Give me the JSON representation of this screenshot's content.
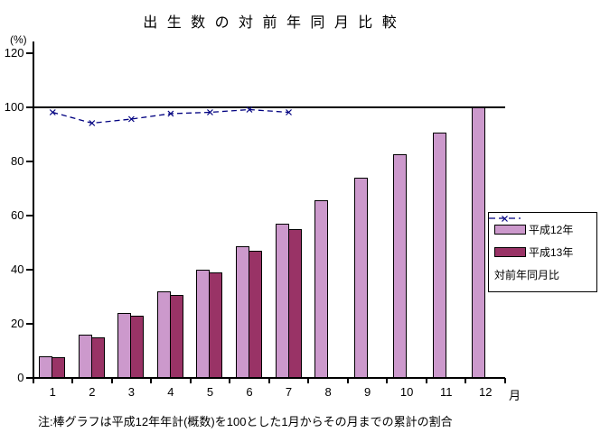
{
  "title": "出 生 数 の 対 前 年 同 月 比 較",
  "y_axis": {
    "unit": "(%)",
    "ticks": [
      0,
      20,
      40,
      60,
      80,
      100,
      120
    ]
  },
  "x_axis": {
    "unit": "月",
    "categories": [
      "1",
      "2",
      "3",
      "4",
      "5",
      "6",
      "7",
      "8",
      "9",
      "10",
      "11",
      "12"
    ]
  },
  "note": "注:棒グラフは平成12年年計(概数)を100とした1月からその月までの累計の割合",
  "colors": {
    "series1": "#CC99CC",
    "series2": "#993366",
    "line": "#000080",
    "axis": "#000000"
  },
  "chart_data": {
    "type": "bar",
    "title": "出生数の対前年同月比較",
    "categories": [
      1,
      2,
      3,
      4,
      5,
      6,
      7,
      8,
      9,
      10,
      11,
      12
    ],
    "series": [
      {
        "name": "平成12年",
        "type": "bar",
        "color": "#CC99CC",
        "values": [
          8,
          16,
          24,
          32,
          40,
          48.5,
          57,
          65.5,
          74,
          82.5,
          90.5,
          100
        ]
      },
      {
        "name": "平成13年",
        "type": "bar",
        "color": "#993366",
        "values": [
          7.5,
          15,
          23,
          30.5,
          39,
          47,
          55
        ]
      },
      {
        "name": "対前年同月比",
        "type": "line",
        "color": "#000080",
        "marker": "x",
        "dashed": true,
        "values": [
          98,
          94,
          95.5,
          97.5,
          98,
          99,
          98
        ]
      }
    ],
    "ylabel": "(%)",
    "xlabel": "月",
    "ylim": [
      0,
      120
    ],
    "yticks": [
      0,
      20,
      40,
      60,
      80,
      100,
      120
    ],
    "reference_line": 100,
    "grid": false,
    "legend_position": "middle-right",
    "annotation": "注:棒グラフは平成12年年計(概数)を100とした1月からその月までの累計の割合"
  }
}
